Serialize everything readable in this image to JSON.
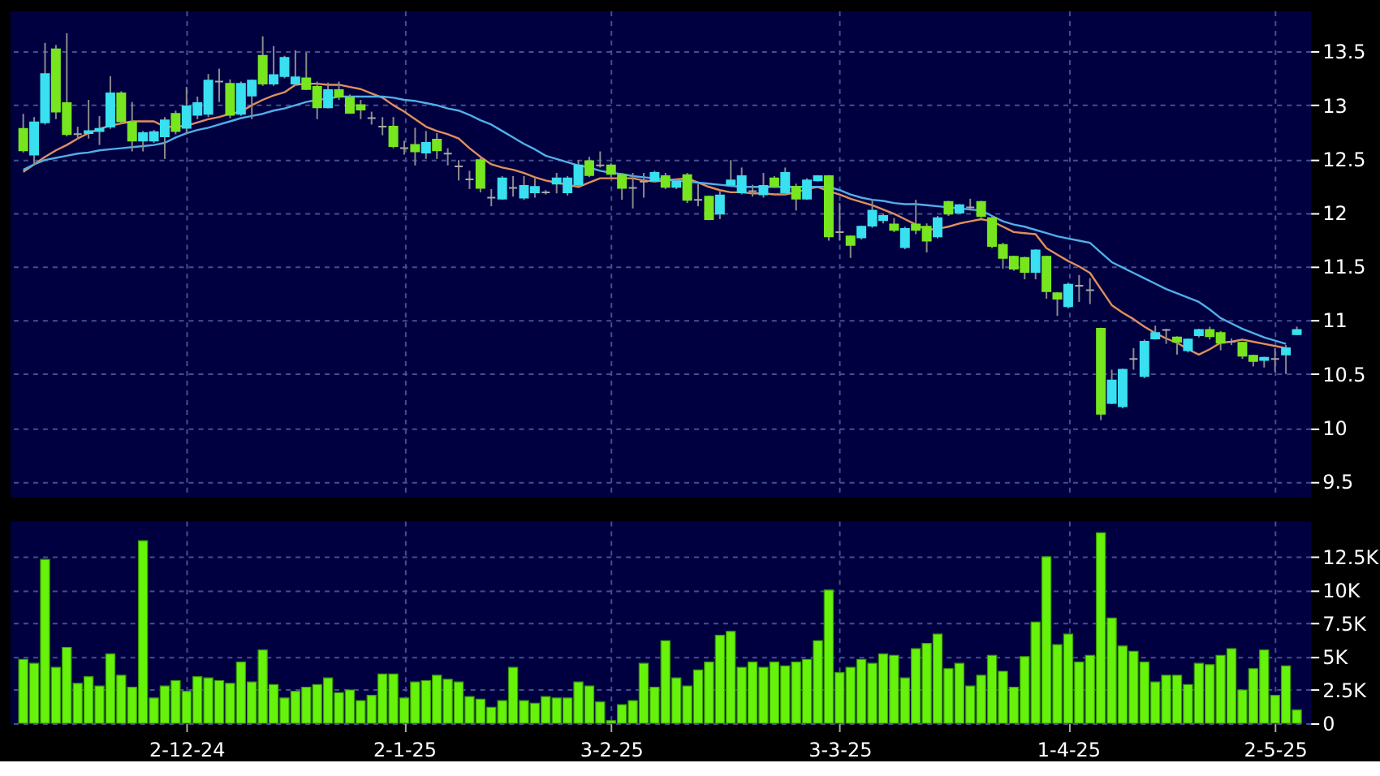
{
  "chart_data": [
    {
      "type": "candlestick",
      "categories": [
        null,
        null,
        null,
        null,
        null,
        null,
        null,
        null,
        null,
        null,
        null,
        null,
        null,
        null,
        null,
        null,
        null,
        null,
        null,
        null,
        null,
        null,
        null,
        null,
        null,
        null,
        null,
        null,
        null,
        null,
        null,
        null,
        null,
        null,
        null,
        null,
        null,
        null,
        null,
        null,
        null,
        null,
        null,
        null,
        null,
        null,
        null,
        null,
        null,
        null,
        null,
        null,
        null,
        null,
        null,
        null,
        null,
        null,
        null,
        null,
        null,
        null,
        null,
        null,
        null,
        null,
        null,
        null,
        null,
        null,
        null,
        null,
        null,
        null,
        null,
        null,
        null,
        null,
        null,
        null,
        null,
        null,
        null,
        null,
        null,
        null,
        null,
        null,
        null,
        null,
        null,
        null,
        null,
        null,
        null,
        null,
        null,
        null,
        null,
        null,
        null,
        null,
        null,
        null,
        null,
        null,
        null,
        null,
        null,
        null,
        null,
        null,
        null,
        null,
        null,
        null,
        null,
        null
      ],
      "ohlc": [
        [
          12.78,
          12.92,
          12.56,
          12.58
        ],
        [
          12.54,
          12.89,
          12.44,
          12.84
        ],
        [
          12.84,
          13.58,
          12.82,
          13.29
        ],
        [
          13.52,
          13.56,
          12.87,
          12.94
        ],
        [
          13.02,
          13.67,
          12.71,
          12.73
        ],
        [
          12.73,
          12.8,
          12.68,
          12.73
        ],
        [
          12.74,
          13.05,
          12.69,
          12.76
        ],
        [
          12.76,
          12.9,
          12.63,
          12.78
        ],
        [
          12.8,
          13.27,
          12.78,
          13.11
        ],
        [
          13.11,
          13.13,
          12.83,
          12.85
        ],
        [
          12.84,
          13.03,
          12.57,
          12.67
        ],
        [
          12.67,
          12.76,
          12.57,
          12.74
        ],
        [
          12.67,
          12.77,
          12.65,
          12.75
        ],
        [
          12.71,
          12.89,
          12.5,
          12.86
        ],
        [
          12.92,
          12.95,
          12.73,
          12.76
        ],
        [
          12.79,
          13.17,
          12.73,
          12.99
        ],
        [
          12.91,
          13.08,
          12.87,
          13.02
        ],
        [
          12.92,
          13.29,
          12.89,
          13.23
        ],
        [
          13.22,
          13.34,
          13.03,
          13.22
        ],
        [
          13.2,
          13.24,
          12.88,
          12.91
        ],
        [
          12.92,
          13.22,
          12.9,
          13.2
        ],
        [
          13.09,
          13.24,
          12.87,
          13.23
        ],
        [
          13.46,
          13.64,
          13.18,
          13.2
        ],
        [
          13.2,
          13.55,
          13.18,
          13.28
        ],
        [
          13.27,
          13.46,
          13.25,
          13.44
        ],
        [
          13.2,
          13.51,
          13.18,
          13.26
        ],
        [
          13.25,
          13.49,
          13.14,
          13.15
        ],
        [
          13.17,
          13.22,
          12.87,
          12.98
        ],
        [
          12.98,
          13.21,
          12.97,
          13.14
        ],
        [
          13.14,
          13.22,
          13.05,
          13.08
        ],
        [
          13.07,
          13.1,
          12.92,
          12.93
        ],
        [
          13.0,
          13.05,
          12.87,
          12.96
        ],
        [
          12.88,
          12.94,
          12.82,
          12.88
        ],
        [
          12.8,
          12.89,
          12.72,
          12.8
        ],
        [
          12.8,
          12.89,
          12.6,
          12.62
        ],
        [
          12.6,
          12.67,
          12.54,
          12.6
        ],
        [
          12.63,
          12.79,
          12.44,
          12.57
        ],
        [
          12.56,
          12.76,
          12.5,
          12.65
        ],
        [
          12.68,
          12.74,
          12.5,
          12.58
        ],
        [
          12.55,
          12.6,
          12.44,
          12.55
        ],
        [
          12.43,
          12.49,
          12.3,
          12.43
        ],
        [
          12.31,
          12.39,
          12.22,
          12.31
        ],
        [
          12.49,
          12.52,
          12.19,
          12.23
        ],
        [
          12.14,
          12.22,
          12.06,
          12.14
        ],
        [
          12.13,
          12.34,
          12.12,
          12.32
        ],
        [
          12.23,
          12.34,
          12.15,
          12.23
        ],
        [
          12.14,
          12.34,
          12.12,
          12.25
        ],
        [
          12.19,
          12.32,
          12.14,
          12.24
        ],
        [
          12.19,
          12.21,
          12.17,
          12.19
        ],
        [
          12.27,
          12.37,
          12.18,
          12.32
        ],
        [
          12.19,
          12.34,
          12.16,
          12.32
        ],
        [
          12.26,
          12.49,
          12.25,
          12.44
        ],
        [
          12.48,
          12.52,
          12.33,
          12.35
        ],
        [
          12.44,
          12.57,
          12.42,
          12.44
        ],
        [
          12.44,
          12.46,
          12.33,
          12.36
        ],
        [
          12.35,
          12.37,
          12.12,
          12.23
        ],
        [
          12.23,
          12.37,
          12.04,
          12.23
        ],
        [
          12.29,
          12.37,
          12.14,
          12.29
        ],
        [
          12.3,
          12.39,
          12.28,
          12.37
        ],
        [
          12.34,
          12.37,
          12.22,
          12.24
        ],
        [
          12.24,
          12.31,
          12.22,
          12.29
        ],
        [
          12.35,
          12.37,
          12.09,
          12.12
        ],
        [
          12.12,
          12.27,
          12.06,
          12.12
        ],
        [
          12.15,
          12.16,
          11.93,
          11.94
        ],
        [
          11.99,
          12.2,
          11.94,
          12.16
        ],
        [
          12.26,
          12.49,
          12.24,
          12.3
        ],
        [
          12.19,
          12.42,
          12.17,
          12.34
        ],
        [
          12.2,
          12.26,
          12.15,
          12.2
        ],
        [
          12.17,
          12.37,
          12.14,
          12.25
        ],
        [
          12.32,
          12.34,
          12.23,
          12.25
        ],
        [
          12.19,
          12.42,
          12.17,
          12.37
        ],
        [
          12.24,
          12.27,
          12.02,
          12.13
        ],
        [
          12.13,
          12.32,
          12.12,
          12.3
        ],
        [
          12.3,
          12.35,
          12.29,
          12.34
        ],
        [
          12.34,
          12.35,
          11.74,
          11.78
        ],
        [
          11.82,
          12.09,
          11.74,
          11.82
        ],
        [
          11.78,
          11.79,
          11.58,
          11.7
        ],
        [
          11.77,
          11.88,
          11.75,
          11.87
        ],
        [
          11.88,
          12.12,
          11.86,
          12.02
        ],
        [
          11.93,
          11.99,
          11.9,
          11.97
        ],
        [
          11.89,
          11.95,
          11.82,
          11.84
        ],
        [
          11.68,
          11.87,
          11.66,
          11.85
        ],
        [
          11.89,
          12.12,
          11.8,
          11.84
        ],
        [
          11.87,
          11.9,
          11.63,
          11.74
        ],
        [
          11.78,
          11.97,
          11.76,
          11.95
        ],
        [
          12.1,
          12.11,
          11.97,
          11.99
        ],
        [
          12.0,
          12.08,
          11.99,
          12.07
        ],
        [
          12.05,
          12.13,
          12.02,
          12.05
        ],
        [
          12.1,
          12.11,
          11.95,
          11.97
        ],
        [
          11.95,
          11.97,
          11.67,
          11.69
        ],
        [
          11.7,
          11.72,
          11.48,
          11.58
        ],
        [
          11.59,
          11.6,
          11.46,
          11.48
        ],
        [
          11.58,
          11.59,
          11.38,
          11.45
        ],
        [
          11.45,
          11.66,
          11.38,
          11.65
        ],
        [
          11.59,
          11.6,
          11.2,
          11.27
        ],
        [
          11.25,
          11.26,
          11.04,
          11.2
        ],
        [
          11.13,
          11.35,
          11.11,
          11.33
        ],
        [
          11.32,
          11.42,
          11.17,
          11.32
        ],
        [
          11.28,
          11.39,
          11.15,
          11.28
        ],
        [
          10.92,
          10.93,
          10.07,
          10.13
        ],
        [
          10.23,
          10.54,
          10.22,
          10.44
        ],
        [
          10.2,
          10.55,
          10.18,
          10.54
        ],
        [
          10.64,
          10.74,
          10.54,
          10.64
        ],
        [
          10.48,
          10.82,
          10.46,
          10.8
        ],
        [
          10.83,
          10.95,
          10.82,
          10.88
        ],
        [
          10.91,
          10.92,
          10.78,
          10.91
        ],
        [
          10.84,
          10.85,
          10.68,
          10.8
        ],
        [
          10.72,
          10.83,
          10.7,
          10.82
        ],
        [
          10.86,
          10.92,
          10.84,
          10.91
        ],
        [
          10.91,
          10.94,
          10.82,
          10.85
        ],
        [
          10.88,
          10.9,
          10.72,
          10.79
        ],
        [
          10.8,
          10.83,
          10.77,
          10.8
        ],
        [
          10.79,
          10.8,
          10.64,
          10.67
        ],
        [
          10.67,
          10.68,
          10.57,
          10.62
        ],
        [
          10.63,
          10.66,
          10.56,
          10.65
        ],
        [
          10.64,
          10.74,
          10.52,
          10.64
        ],
        [
          10.68,
          10.77,
          10.5,
          10.74
        ],
        [
          10.87,
          10.94,
          10.86,
          10.91
        ]
      ],
      "colors": [
        "#77e61e",
        "#38e0f0",
        "#38e0f0",
        "#77e61e",
        "#77e61e",
        "#a8a8a8",
        "#38e0f0",
        "#38e0f0",
        "#38e0f0",
        "#77e61e",
        "#77e61e",
        "#38e0f0",
        "#38e0f0",
        "#38e0f0",
        "#77e61e",
        "#38e0f0",
        "#38e0f0",
        "#38e0f0",
        "#a8a8a8",
        "#77e61e",
        "#38e0f0",
        "#38e0f0",
        "#77e61e",
        "#38e0f0",
        "#38e0f0",
        "#38e0f0",
        "#77e61e",
        "#77e61e",
        "#38e0f0",
        "#77e61e",
        "#77e61e",
        "#77e61e",
        "#a8a8a8",
        "#a8a8a8",
        "#77e61e",
        "#a8a8a8",
        "#77e61e",
        "#38e0f0",
        "#77e61e",
        "#a8a8a8",
        "#a8a8a8",
        "#a8a8a8",
        "#77e61e",
        "#a8a8a8",
        "#38e0f0",
        "#a8a8a8",
        "#38e0f0",
        "#38e0f0",
        "#a8a8a8",
        "#38e0f0",
        "#38e0f0",
        "#38e0f0",
        "#77e61e",
        "#a8a8a8",
        "#77e61e",
        "#77e61e",
        "#a8a8a8",
        "#a8a8a8",
        "#38e0f0",
        "#77e61e",
        "#38e0f0",
        "#77e61e",
        "#a8a8a8",
        "#77e61e",
        "#38e0f0",
        "#38e0f0",
        "#38e0f0",
        "#a8a8a8",
        "#38e0f0",
        "#77e61e",
        "#38e0f0",
        "#77e61e",
        "#38e0f0",
        "#38e0f0",
        "#77e61e",
        "#a8a8a8",
        "#77e61e",
        "#38e0f0",
        "#38e0f0",
        "#38e0f0",
        "#77e61e",
        "#38e0f0",
        "#77e61e",
        "#77e61e",
        "#38e0f0",
        "#77e61e",
        "#38e0f0",
        "#a8a8a8",
        "#77e61e",
        "#77e61e",
        "#77e61e",
        "#77e61e",
        "#77e61e",
        "#38e0f0",
        "#77e61e",
        "#77e61e",
        "#38e0f0",
        "#a8a8a8",
        "#a8a8a8",
        "#77e61e",
        "#38e0f0",
        "#38e0f0",
        "#a8a8a8",
        "#38e0f0",
        "#38e0f0",
        "#a8a8a8",
        "#77e61e",
        "#38e0f0",
        "#38e0f0",
        "#77e61e",
        "#77e61e",
        "#a8a8a8",
        "#77e61e",
        "#77e61e",
        "#38e0f0",
        "#a8a8a8",
        "#38e0f0",
        "#38e0f0"
      ],
      "series": [
        {
          "type": "line",
          "color": "#e0905a",
          "values": [
            12.38,
            12.45,
            12.52,
            12.58,
            12.63,
            12.69,
            12.74,
            12.78,
            12.81,
            12.83,
            12.85,
            12.85,
            12.85,
            12.8,
            12.8,
            12.81,
            12.84,
            12.87,
            12.89,
            12.92,
            12.94,
            13.0,
            13.05,
            13.09,
            13.12,
            13.19,
            13.2,
            13.2,
            13.19,
            13.19,
            13.17,
            13.15,
            13.11,
            13.07,
            13.0,
            12.94,
            12.87,
            12.8,
            12.76,
            12.73,
            12.69,
            12.6,
            12.52,
            12.45,
            12.42,
            12.4,
            12.37,
            12.33,
            12.3,
            12.28,
            12.26,
            12.24,
            12.28,
            12.32,
            12.32,
            12.32,
            12.32,
            12.3,
            12.29,
            12.3,
            12.31,
            12.32,
            12.28,
            12.24,
            12.21,
            12.19,
            12.19,
            12.18,
            12.18,
            12.17,
            12.17,
            12.19,
            12.22,
            12.24,
            12.2,
            12.17,
            12.13,
            12.1,
            12.07,
            12.03,
            11.99,
            11.94,
            11.89,
            11.84,
            11.85,
            11.87,
            11.9,
            11.92,
            11.94,
            11.92,
            11.87,
            11.82,
            11.81,
            11.8,
            11.67,
            11.61,
            11.55,
            11.5,
            11.44,
            11.29,
            11.14,
            11.07,
            11.01,
            10.94,
            10.88,
            10.83,
            10.79,
            10.73,
            10.68,
            10.73,
            10.79,
            10.8,
            10.82,
            10.8,
            10.78,
            10.76,
            10.74,
            null
          ]
        },
        {
          "type": "line",
          "color": "#52aee8",
          "values": [
            12.4,
            12.45,
            12.49,
            12.51,
            12.53,
            12.55,
            12.56,
            12.58,
            12.59,
            12.6,
            12.61,
            12.62,
            12.63,
            12.65,
            12.7,
            12.74,
            12.77,
            12.79,
            12.82,
            12.85,
            12.88,
            12.9,
            12.92,
            12.95,
            12.97,
            13.0,
            13.03,
            13.05,
            13.06,
            13.08,
            13.08,
            13.08,
            13.08,
            13.08,
            13.07,
            13.05,
            13.04,
            13.02,
            13.0,
            12.97,
            12.95,
            12.91,
            12.86,
            12.82,
            12.76,
            12.7,
            12.64,
            12.59,
            12.53,
            12.5,
            12.47,
            12.44,
            12.42,
            12.39,
            12.37,
            12.36,
            12.34,
            12.33,
            12.32,
            12.31,
            12.3,
            12.29,
            12.28,
            12.27,
            12.26,
            12.25,
            12.24,
            12.24,
            12.24,
            12.24,
            12.24,
            12.24,
            12.24,
            12.24,
            12.24,
            12.21,
            12.17,
            12.14,
            12.12,
            12.11,
            12.09,
            12.08,
            12.08,
            12.07,
            12.06,
            12.05,
            12.04,
            12.03,
            12.02,
            11.97,
            11.92,
            11.89,
            11.87,
            11.84,
            11.81,
            11.78,
            11.76,
            11.74,
            11.72,
            11.63,
            11.54,
            11.49,
            11.44,
            11.39,
            11.34,
            11.29,
            11.25,
            11.21,
            11.17,
            11.1,
            11.02,
            10.97,
            10.92,
            10.88,
            10.84,
            10.81,
            10.78,
            null
          ]
        }
      ],
      "ylim": [
        9.36,
        13.88
      ],
      "yticks": [
        9.5,
        10,
        10.5,
        11,
        11.5,
        12,
        12.5,
        13,
        13.5
      ],
      "tick_labels": "y",
      "grid": true
    },
    {
      "type": "bar",
      "color": "#66f20a",
      "categories": [
        null,
        null,
        null,
        null,
        null,
        null,
        null,
        null,
        null,
        null,
        null,
        null,
        null,
        null,
        null,
        "2-12-24",
        null,
        null,
        null,
        null,
        null,
        null,
        null,
        null,
        null,
        null,
        null,
        null,
        null,
        null,
        null,
        null,
        null,
        null,
        null,
        "2-1-25",
        null,
        null,
        null,
        null,
        null,
        null,
        null,
        null,
        null,
        null,
        null,
        null,
        null,
        null,
        null,
        null,
        null,
        null,
        "3-2-25",
        null,
        null,
        null,
        null,
        null,
        null,
        null,
        null,
        null,
        null,
        null,
        null,
        null,
        null,
        null,
        null,
        null,
        null,
        null,
        null,
        "3-3-25",
        null,
        null,
        null,
        null,
        null,
        null,
        null,
        null,
        null,
        null,
        null,
        null,
        null,
        null,
        null,
        null,
        null,
        null,
        null,
        null,
        "1-4-25",
        null,
        null,
        null,
        null,
        null,
        null,
        null,
        null,
        null,
        null,
        null,
        null,
        null,
        null,
        null,
        null,
        null,
        null,
        "2-5-25",
        null,
        null
      ],
      "values": [
        4800,
        4500,
        12300,
        4200,
        5700,
        3000,
        3500,
        2800,
        5200,
        3600,
        2700,
        13700,
        1900,
        2800,
        3200,
        2400,
        3500,
        3400,
        3200,
        3000,
        4600,
        3100,
        5500,
        2900,
        1900,
        2400,
        2700,
        2900,
        3400,
        2300,
        2500,
        1700,
        2100,
        3700,
        3700,
        1900,
        3100,
        3200,
        3600,
        3300,
        3100,
        2000,
        1800,
        1200,
        1700,
        4200,
        1700,
        1500,
        2000,
        1900,
        1900,
        3100,
        2800,
        1600,
        200,
        1400,
        1700,
        4500,
        2700,
        6200,
        3400,
        2800,
        4000,
        4600,
        6600,
        6900,
        4200,
        4600,
        4200,
        4600,
        4300,
        4600,
        4800,
        6200,
        10000,
        3800,
        4200,
        4800,
        4500,
        5200,
        5100,
        3400,
        5600,
        6000,
        6700,
        4100,
        4500,
        2800,
        3600,
        5100,
        3900,
        2700,
        5000,
        7600,
        12500,
        5900,
        6700,
        4600,
        5100,
        14300,
        7900,
        5800,
        5400,
        4600,
        3100,
        3600,
        3600,
        2900,
        4500,
        4400,
        5100,
        5600,
        2500,
        4100,
        5500,
        2100,
        4300,
        1000
      ],
      "ylim": [
        0,
        15200
      ],
      "yticks": [
        {
          "value": 0,
          "label": "0"
        },
        {
          "value": 2500,
          "label": "2.5K"
        },
        {
          "value": 5000,
          "label": "5K"
        },
        {
          "value": 7500,
          "label": "7.5K"
        },
        {
          "value": 10000,
          "label": "10K"
        },
        {
          "value": 12500,
          "label": "12.5K"
        }
      ],
      "grid": true
    }
  ]
}
